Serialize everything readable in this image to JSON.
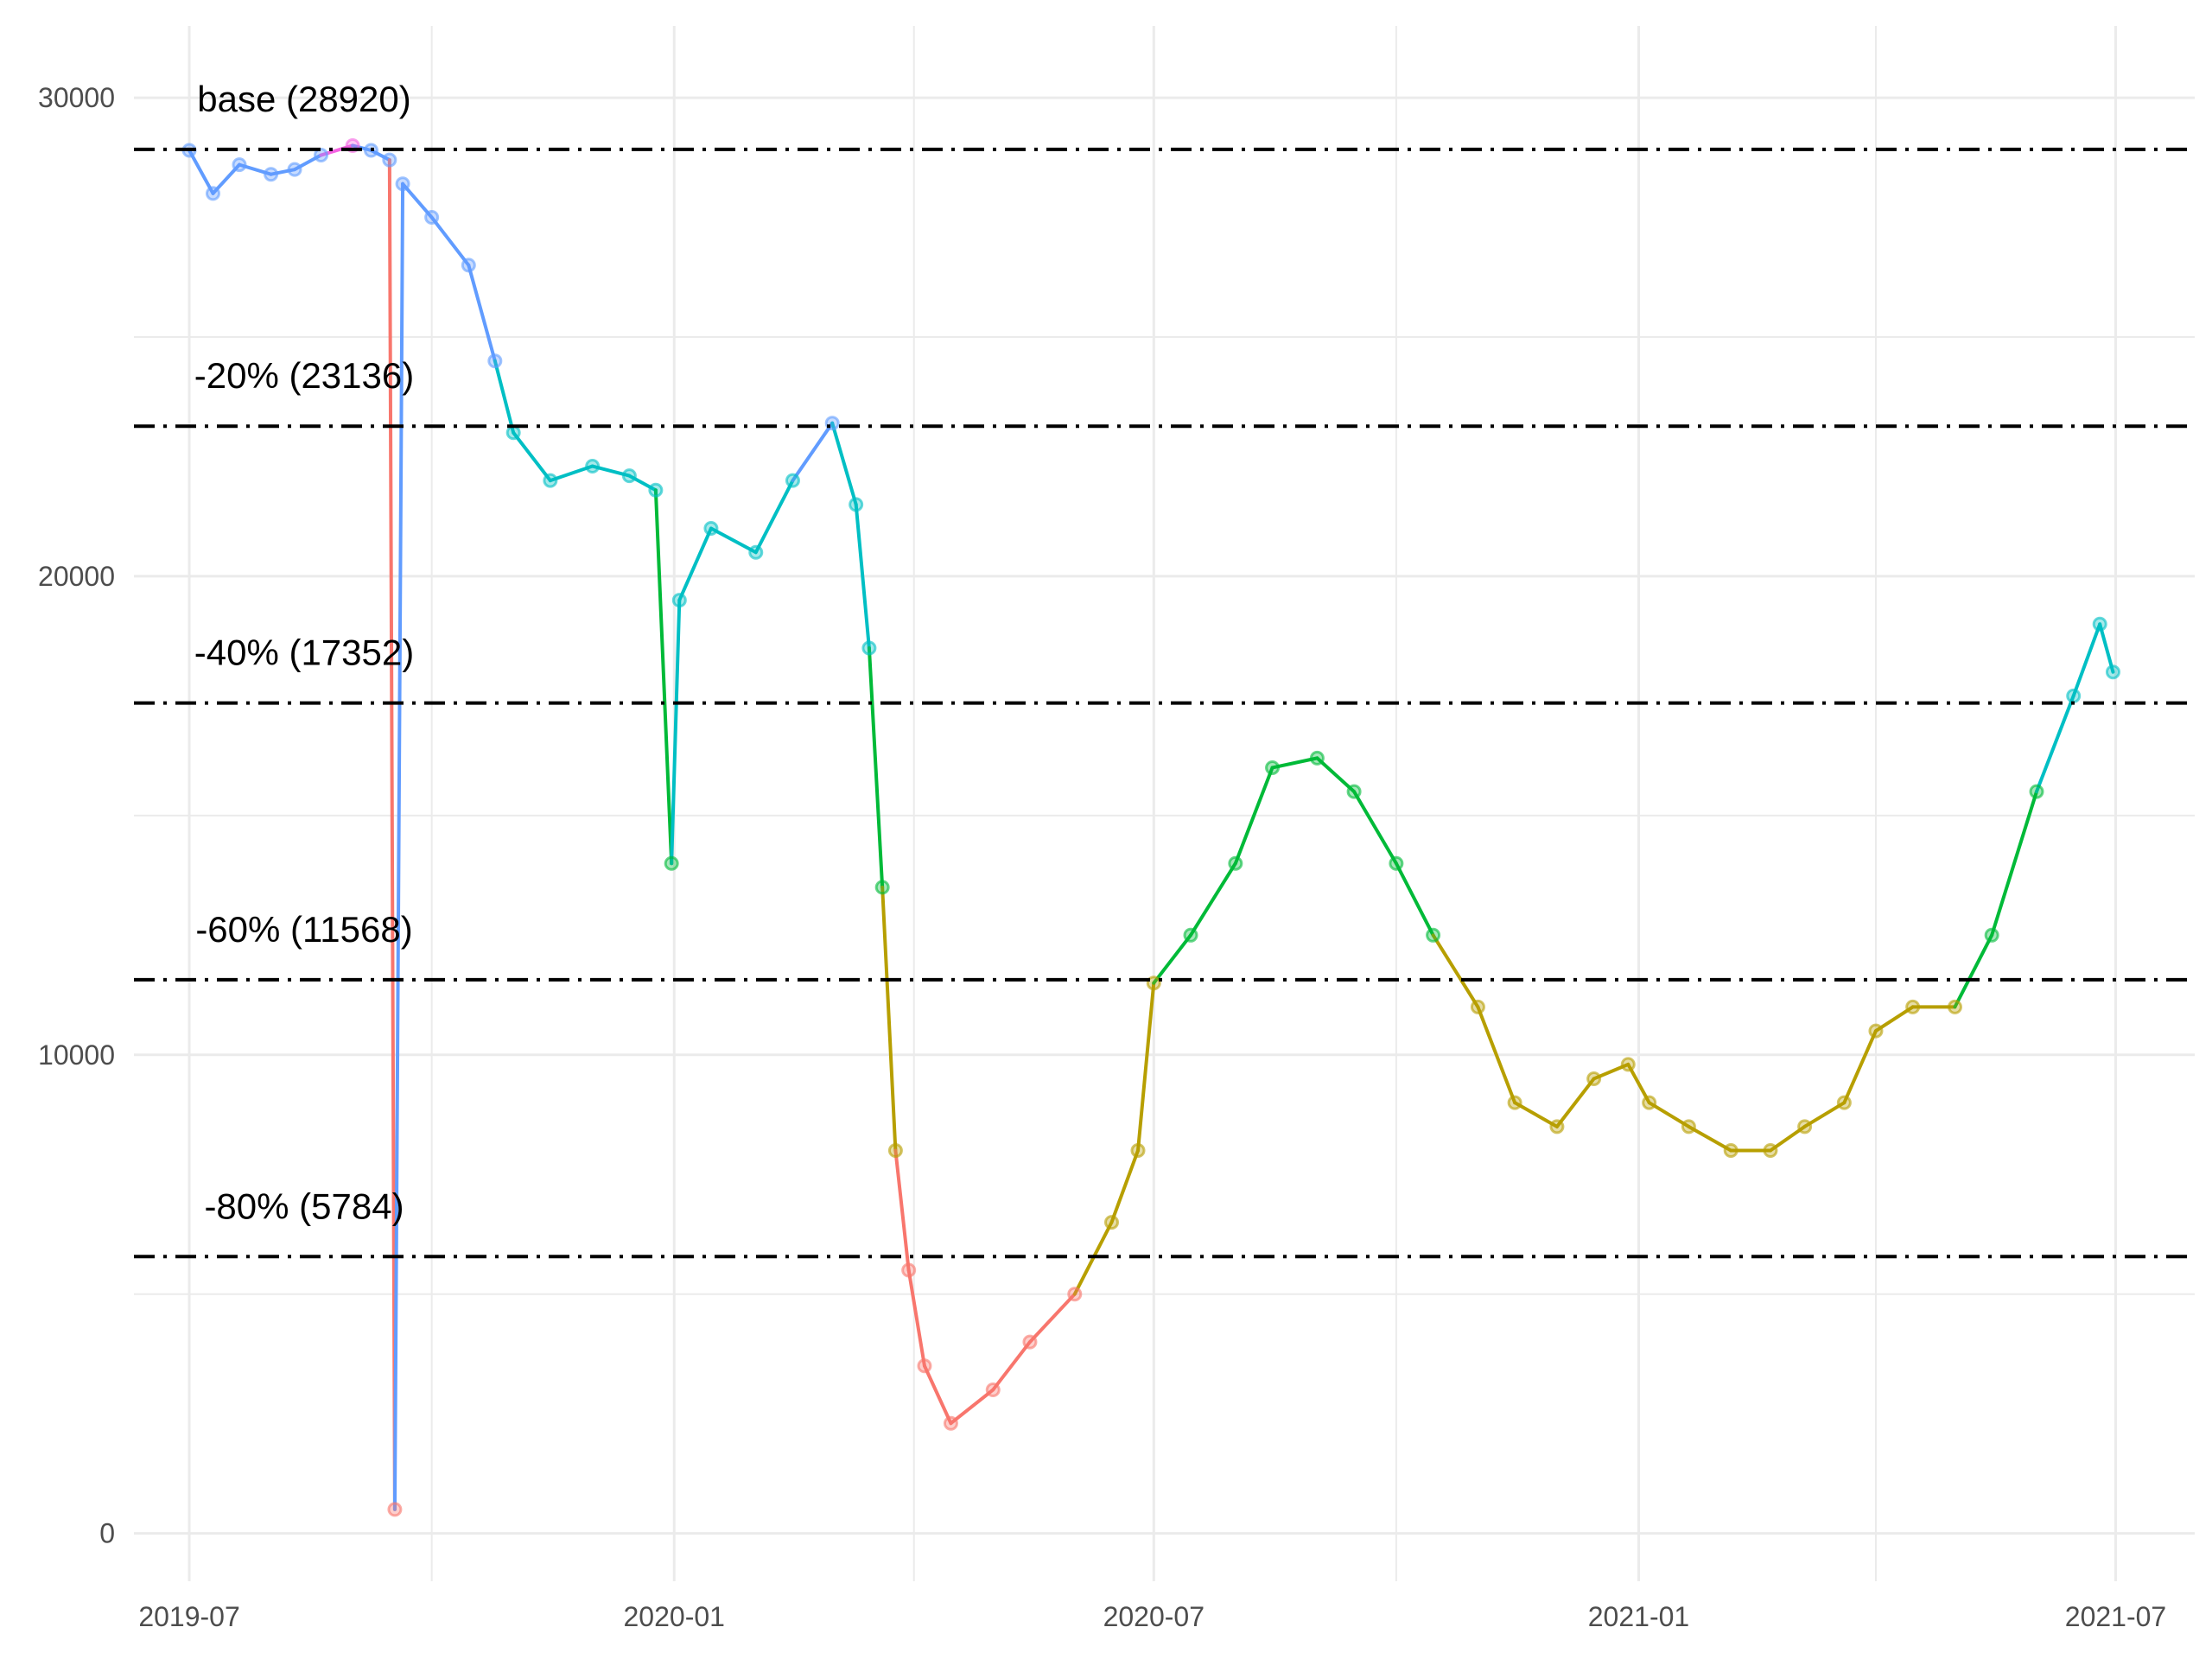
{
  "colors": {
    "grid": "#ebebeb",
    "reference_line": "#000000",
    "band_below_20pct": "#F8766D",
    "band_20_to_40pct": "#B79F00",
    "band_40_to_60pct": "#00BA38",
    "band_60_to_80pct": "#00BFC4",
    "band_80_to_100pct": "#619CFF",
    "band_above_base": "#F564E3"
  },
  "chart_data": {
    "type": "line",
    "title": "",
    "xlabel": "",
    "ylabel": "",
    "x_ticks": [
      "2019-07",
      "2020-01",
      "2020-07",
      "2021-01",
      "2021-07"
    ],
    "y_ticks": [
      0,
      10000,
      20000,
      30000
    ],
    "xlim": [
      "2019-06-10",
      "2021-07-31"
    ],
    "ylim": [
      -1000,
      31500
    ],
    "grid": true,
    "legend": "none",
    "reference_lines": [
      {
        "label": "base (28920)",
        "value": 28920
      },
      {
        "label": "-20% (23136)",
        "value": 23136
      },
      {
        "label": "-40% (17352)",
        "value": 17352
      },
      {
        "label": "-60% (11568)",
        "value": 11568
      },
      {
        "label": "-80% (5784)",
        "value": 5784
      }
    ],
    "series_points": [
      [
        "2019-07-01",
        28900
      ],
      [
        "2019-07-10",
        28000
      ],
      [
        "2019-07-20",
        28600
      ],
      [
        "2019-08-01",
        28400
      ],
      [
        "2019-08-10",
        28500
      ],
      [
        "2019-08-20",
        28800
      ],
      [
        "2019-09-01",
        29000
      ],
      [
        "2019-09-08",
        28900
      ],
      [
        "2019-09-15",
        28700
      ],
      [
        "2019-09-17",
        500
      ],
      [
        "2019-09-20",
        28200
      ],
      [
        "2019-10-01",
        27500
      ],
      [
        "2019-10-15",
        26500
      ],
      [
        "2019-10-25",
        24500
      ],
      [
        "2019-11-01",
        23000
      ],
      [
        "2019-11-15",
        22000
      ],
      [
        "2019-12-01",
        22300
      ],
      [
        "2019-12-15",
        22100
      ],
      [
        "2019-12-25",
        21800
      ],
      [
        "2019-12-31",
        14000
      ],
      [
        "2020-01-03",
        19500
      ],
      [
        "2020-01-15",
        21000
      ],
      [
        "2020-02-01",
        20500
      ],
      [
        "2020-02-15",
        22000
      ],
      [
        "2020-03-01",
        23200
      ],
      [
        "2020-03-10",
        21500
      ],
      [
        "2020-03-15",
        18500
      ],
      [
        "2020-03-20",
        13500
      ],
      [
        "2020-03-25",
        8000
      ],
      [
        "2020-03-30",
        5500
      ],
      [
        "2020-04-05",
        3500
      ],
      [
        "2020-04-15",
        2300
      ],
      [
        "2020-05-01",
        3000
      ],
      [
        "2020-05-15",
        4000
      ],
      [
        "2020-06-01",
        5000
      ],
      [
        "2020-06-15",
        6500
      ],
      [
        "2020-06-25",
        8000
      ],
      [
        "2020-07-01",
        11500
      ],
      [
        "2020-07-15",
        12500
      ],
      [
        "2020-08-01",
        14000
      ],
      [
        "2020-08-15",
        16000
      ],
      [
        "2020-09-01",
        16200
      ],
      [
        "2020-09-15",
        15500
      ],
      [
        "2020-10-01",
        14000
      ],
      [
        "2020-10-15",
        12500
      ],
      [
        "2020-11-01",
        11000
      ],
      [
        "2020-11-15",
        9000
      ],
      [
        "2020-12-01",
        8500
      ],
      [
        "2020-12-15",
        9500
      ],
      [
        "2020-12-28",
        9800
      ],
      [
        "2021-01-05",
        9000
      ],
      [
        "2021-01-20",
        8500
      ],
      [
        "2021-02-05",
        8000
      ],
      [
        "2021-02-20",
        8000
      ],
      [
        "2021-03-05",
        8500
      ],
      [
        "2021-03-20",
        9000
      ],
      [
        "2021-04-01",
        10500
      ],
      [
        "2021-04-15",
        11000
      ],
      [
        "2021-05-01",
        11000
      ],
      [
        "2021-05-15",
        12500
      ],
      [
        "2021-06-01",
        15500
      ],
      [
        "2021-06-15",
        17500
      ],
      [
        "2021-06-25",
        19000
      ],
      [
        "2021-06-30",
        18000
      ]
    ]
  }
}
